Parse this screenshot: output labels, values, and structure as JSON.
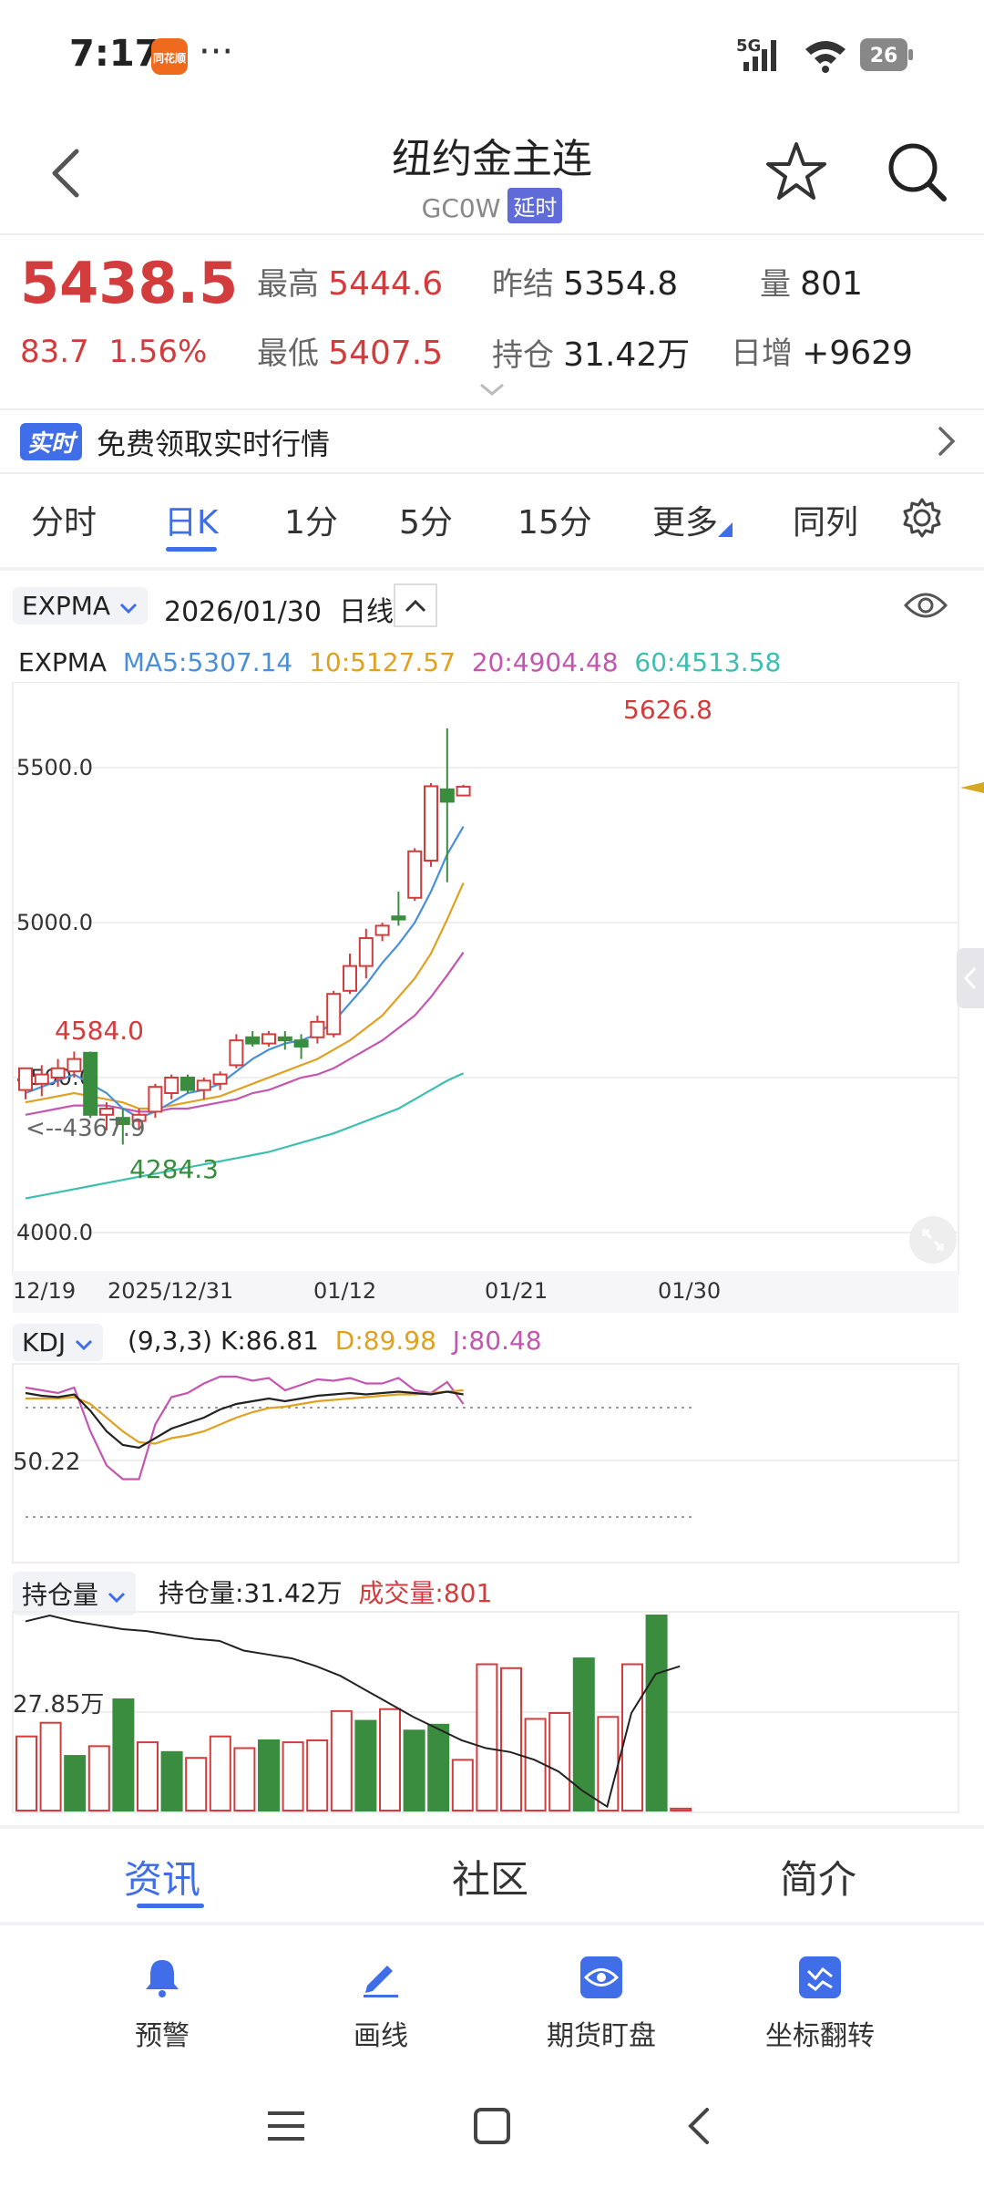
{
  "status_bar": {
    "time": "7:17",
    "app_badge": "同花顺",
    "dots": "···",
    "network": "5G",
    "battery": "26"
  },
  "header": {
    "title": "纽约金主连",
    "code": "GC0W",
    "delay_badge": "延时"
  },
  "quote": {
    "last": "5438.5",
    "change": "83.7",
    "change_pct": "1.56%",
    "high_label": "最高",
    "high": "5444.6",
    "low_label": "最低",
    "low": "5407.5",
    "prev_settle_label": "昨结",
    "prev_settle": "5354.8",
    "open_int_label": "持仓",
    "open_int": "31.42万",
    "volume_label": "量",
    "volume": "801",
    "daily_inc_label": "日增",
    "daily_inc": "+9629"
  },
  "banner": {
    "badge": "实时",
    "text": "免费领取实时行情"
  },
  "period_tabs": [
    "分时",
    "日K",
    "1分",
    "5分",
    "15分",
    "更多",
    "同列"
  ],
  "chart_header": {
    "indicator": "EXPMA",
    "date": "2026/01/30",
    "period": "日线"
  },
  "expma_legend": {
    "name": "EXPMA",
    "ma5": "MA5:5307.14",
    "ma10": "10:5127.57",
    "ma20": "20:4904.48",
    "ma60": "60:4513.58"
  },
  "colors": {
    "up": "#d23c3c",
    "down": "#3a8c3f",
    "ma5": "#4a90d9",
    "ma10": "#e0a020",
    "ma20": "#c455b0",
    "ma60": "#3cbfb0",
    "accent": "#3f6ee8"
  },
  "chart_data": {
    "type": "candlestick",
    "title": "",
    "y_ticks": [
      "5500.0",
      "5000.0",
      "4500.0",
      "4000.0"
    ],
    "ylim": [
      4000,
      5600
    ],
    "x_ticks": [
      "12/19",
      "2025/12/31",
      "01/12",
      "01/21",
      "01/30"
    ],
    "annotations": {
      "max": "5626.8",
      "local_high": "4584.0",
      "min": "4284.3",
      "cursor": "4367.9"
    },
    "candles": [
      {
        "o": 4460,
        "h": 4520,
        "l": 4430,
        "c": 4530,
        "up": true
      },
      {
        "o": 4480,
        "h": 4540,
        "l": 4440,
        "c": 4510,
        "up": true
      },
      {
        "o": 4500,
        "h": 4560,
        "l": 4470,
        "c": 4530,
        "up": true
      },
      {
        "o": 4520,
        "h": 4584,
        "l": 4500,
        "c": 4560,
        "up": true
      },
      {
        "o": 4580,
        "h": 4584,
        "l": 4370,
        "c": 4380,
        "up": false
      },
      {
        "o": 4380,
        "h": 4420,
        "l": 4330,
        "c": 4400,
        "up": true
      },
      {
        "o": 4370,
        "h": 4400,
        "l": 4284,
        "c": 4350,
        "up": false
      },
      {
        "o": 4360,
        "h": 4400,
        "l": 4330,
        "c": 4380,
        "up": true
      },
      {
        "o": 4390,
        "h": 4480,
        "l": 4370,
        "c": 4470,
        "up": true
      },
      {
        "o": 4450,
        "h": 4510,
        "l": 4430,
        "c": 4500,
        "up": true
      },
      {
        "o": 4500,
        "h": 4510,
        "l": 4450,
        "c": 4460,
        "up": false
      },
      {
        "o": 4460,
        "h": 4500,
        "l": 4430,
        "c": 4490,
        "up": true
      },
      {
        "o": 4480,
        "h": 4520,
        "l": 4460,
        "c": 4510,
        "up": true
      },
      {
        "o": 4540,
        "h": 4640,
        "l": 4530,
        "c": 4620,
        "up": true
      },
      {
        "o": 4630,
        "h": 4650,
        "l": 4600,
        "c": 4610,
        "up": false
      },
      {
        "o": 4610,
        "h": 4650,
        "l": 4600,
        "c": 4640,
        "up": true
      },
      {
        "o": 4630,
        "h": 4650,
        "l": 4590,
        "c": 4620,
        "up": false
      },
      {
        "o": 4620,
        "h": 4640,
        "l": 4560,
        "c": 4600,
        "up": false
      },
      {
        "o": 4630,
        "h": 4700,
        "l": 4610,
        "c": 4680,
        "up": true
      },
      {
        "o": 4640,
        "h": 4780,
        "l": 4630,
        "c": 4770,
        "up": true
      },
      {
        "o": 4780,
        "h": 4900,
        "l": 4770,
        "c": 4860,
        "up": true
      },
      {
        "o": 4860,
        "h": 4980,
        "l": 4820,
        "c": 4950,
        "up": true
      },
      {
        "o": 4960,
        "h": 5000,
        "l": 4940,
        "c": 4990,
        "up": true
      },
      {
        "o": 5020,
        "h": 5100,
        "l": 4990,
        "c": 5010,
        "up": false
      },
      {
        "o": 5080,
        "h": 5240,
        "l": 5070,
        "c": 5230,
        "up": true
      },
      {
        "o": 5200,
        "h": 5450,
        "l": 5180,
        "c": 5440,
        "up": true
      },
      {
        "o": 5430,
        "h": 5626.8,
        "l": 5130,
        "c": 5390,
        "up": false
      },
      {
        "o": 5410,
        "h": 5444.6,
        "l": 5407.5,
        "c": 5438.5,
        "up": true
      }
    ],
    "ma5": [
      4450,
      4470,
      4490,
      4510,
      4480,
      4450,
      4400,
      4370,
      4390,
      4420,
      4450,
      4460,
      4480,
      4520,
      4560,
      4590,
      4610,
      4620,
      4640,
      4680,
      4740,
      4800,
      4870,
      4930,
      5000,
      5100,
      5220,
      5310
    ],
    "ma10": [
      4420,
      4430,
      4440,
      4450,
      4440,
      4430,
      4420,
      4400,
      4400,
      4410,
      4420,
      4430,
      4440,
      4460,
      4480,
      4500,
      4520,
      4540,
      4560,
      4590,
      4620,
      4660,
      4700,
      4760,
      4820,
      4900,
      5010,
      5128
    ],
    "ma20": [
      4380,
      4390,
      4400,
      4410,
      4410,
      4410,
      4400,
      4390,
      4390,
      4400,
      4400,
      4410,
      4420,
      4430,
      4450,
      4460,
      4480,
      4500,
      4510,
      4530,
      4560,
      4590,
      4620,
      4660,
      4700,
      4760,
      4830,
      4904
    ],
    "ma60": [
      4110,
      4120,
      4130,
      4140,
      4150,
      4160,
      4170,
      4180,
      4190,
      4200,
      4210,
      4220,
      4230,
      4240,
      4250,
      4260,
      4275,
      4290,
      4305,
      4320,
      4340,
      4360,
      4380,
      4400,
      4430,
      4460,
      4490,
      4514
    ]
  },
  "kdj": {
    "selector": "KDJ",
    "params": "(9,3,3)",
    "k_label": "K:86.81",
    "d_label": "D:89.98",
    "j_label": "J:80.48",
    "level": "50.22",
    "k": [
      88,
      86,
      85,
      87,
      75,
      60,
      50,
      48,
      55,
      62,
      66,
      70,
      76,
      80,
      82,
      84,
      82,
      84,
      86,
      87,
      88,
      87,
      88,
      89,
      88,
      87,
      89,
      87
    ],
    "d": [
      84,
      84,
      84,
      85,
      80,
      70,
      60,
      52,
      51,
      55,
      57,
      60,
      65,
      70,
      74,
      77,
      78,
      80,
      82,
      83,
      84,
      85,
      86,
      87,
      87,
      88,
      89,
      90
    ],
    "j": [
      92,
      90,
      88,
      92,
      60,
      35,
      25,
      25,
      65,
      85,
      88,
      95,
      100,
      100,
      97,
      99,
      90,
      94,
      98,
      97,
      99,
      95,
      95,
      99,
      90,
      88,
      96,
      80
    ]
  },
  "oi_panel": {
    "selector": "持仓量",
    "oi_label": "持仓量:31.42万",
    "vol_label": "成交量:801",
    "level": "27.85万",
    "bars": [
      {
        "v": 0.38,
        "up": true
      },
      {
        "v": 0.45,
        "up": true
      },
      {
        "v": 0.28,
        "up": false
      },
      {
        "v": 0.33,
        "up": true
      },
      {
        "v": 0.57,
        "up": false
      },
      {
        "v": 0.35,
        "up": true
      },
      {
        "v": 0.3,
        "up": false
      },
      {
        "v": 0.27,
        "up": true
      },
      {
        "v": 0.38,
        "up": true
      },
      {
        "v": 0.32,
        "up": true
      },
      {
        "v": 0.36,
        "up": false
      },
      {
        "v": 0.35,
        "up": true
      },
      {
        "v": 0.36,
        "up": true
      },
      {
        "v": 0.51,
        "up": true
      },
      {
        "v": 0.46,
        "up": false
      },
      {
        "v": 0.52,
        "up": true
      },
      {
        "v": 0.41,
        "up": false
      },
      {
        "v": 0.44,
        "up": false
      },
      {
        "v": 0.26,
        "up": true
      },
      {
        "v": 0.75,
        "up": true
      },
      {
        "v": 0.73,
        "up": true
      },
      {
        "v": 0.47,
        "up": true
      },
      {
        "v": 0.5,
        "up": true
      },
      {
        "v": 0.78,
        "up": false
      },
      {
        "v": 0.48,
        "up": true
      },
      {
        "v": 0.75,
        "up": true
      },
      {
        "v": 1.0,
        "up": false
      },
      {
        "v": 0.01,
        "up": true
      }
    ],
    "oi_line": [
      0.97,
      1.0,
      0.97,
      0.95,
      0.93,
      0.92,
      0.9,
      0.88,
      0.87,
      0.82,
      0.8,
      0.78,
      0.74,
      0.69,
      0.62,
      0.55,
      0.48,
      0.42,
      0.36,
      0.32,
      0.3,
      0.26,
      0.2,
      0.1,
      0.02,
      0.5,
      0.7,
      0.74
    ]
  },
  "info_tabs": [
    "资讯",
    "社区",
    "简介"
  ],
  "toolbar": [
    "预警",
    "画线",
    "期货盯盘",
    "坐标翻转"
  ]
}
